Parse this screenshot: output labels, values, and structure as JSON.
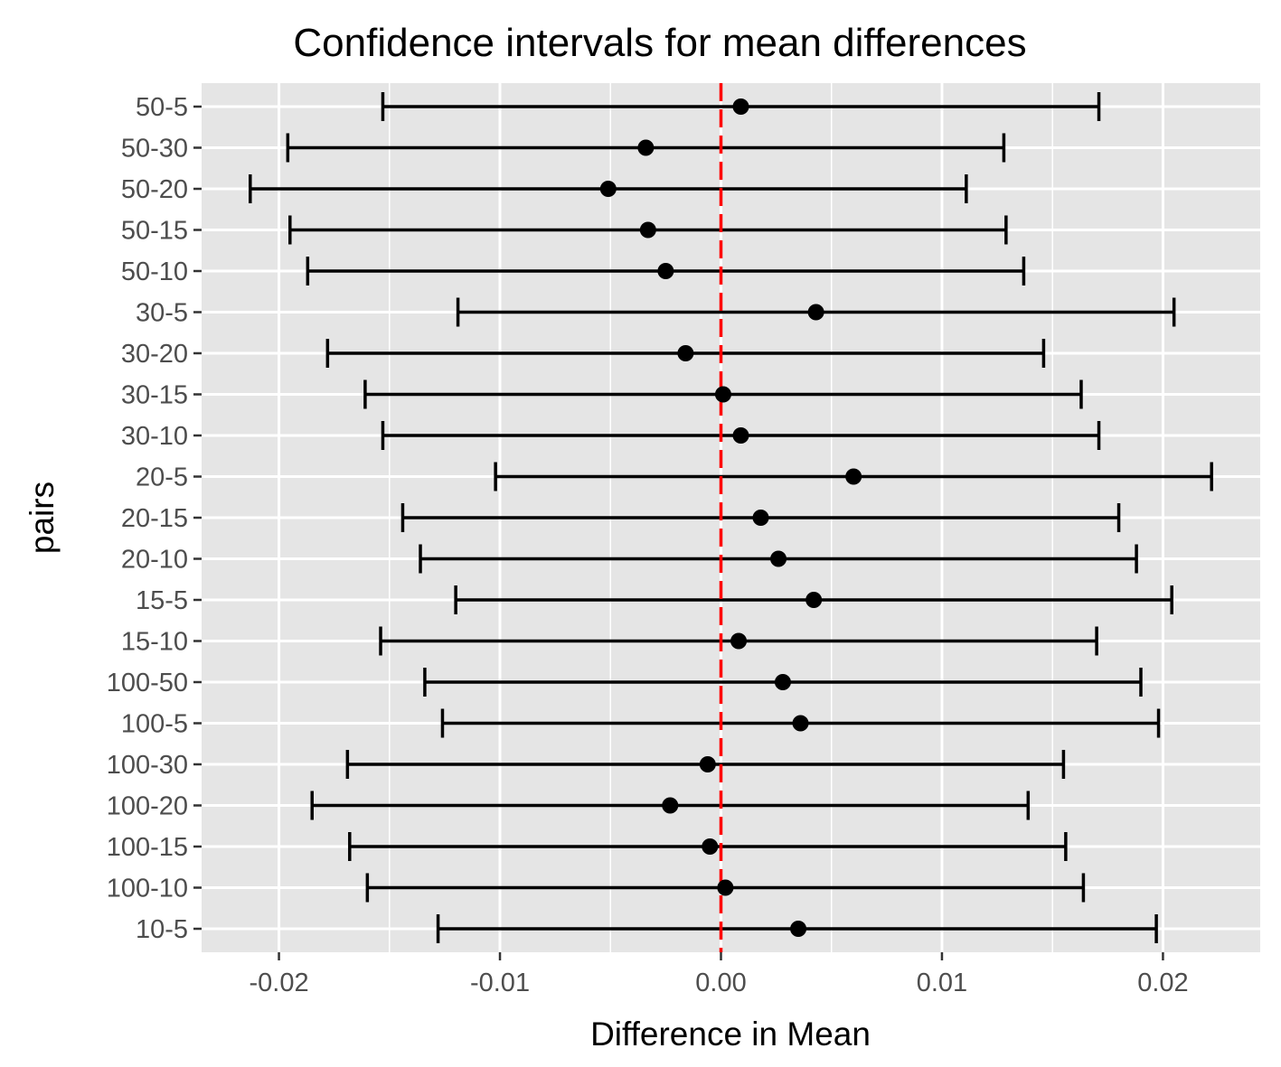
{
  "chart_data": {
    "type": "errorbar",
    "title": "Confidence intervals for mean differences",
    "xlabel": "Difference in Mean",
    "ylabel": "pairs",
    "xlim": [
      -0.0235,
      0.0244
    ],
    "x_ticks": [
      -0.02,
      -0.01,
      0.0,
      0.01,
      0.02
    ],
    "x_tick_labels": [
      "-0.02",
      "-0.01",
      "0.00",
      "0.01",
      "0.02"
    ],
    "grid": true,
    "reference_line": {
      "x": 0.0,
      "style": "dashed",
      "color": "#ff0000"
    },
    "colors": {
      "panel": "#e5e5e5",
      "grid": "#ffffff",
      "marks": "#000000"
    },
    "categories": [
      "50-5",
      "50-30",
      "50-20",
      "50-15",
      "50-10",
      "30-5",
      "30-20",
      "30-15",
      "30-10",
      "20-5",
      "20-15",
      "20-10",
      "15-5",
      "15-10",
      "100-50",
      "100-5",
      "100-30",
      "100-20",
      "100-15",
      "100-10",
      "10-5"
    ],
    "estimates": [
      0.0009,
      -0.0034,
      -0.0051,
      -0.0033,
      -0.0025,
      0.0043,
      -0.0016,
      0.0001,
      0.0009,
      0.006,
      0.0018,
      0.0026,
      0.0042,
      0.0008,
      0.0028,
      0.0036,
      -0.0006,
      -0.0023,
      -0.0005,
      0.0002,
      0.0035
    ],
    "lower": [
      -0.0153,
      -0.0196,
      -0.0213,
      -0.0195,
      -0.0187,
      -0.0119,
      -0.0178,
      -0.0161,
      -0.0153,
      -0.0102,
      -0.0144,
      -0.0136,
      -0.012,
      -0.0154,
      -0.0134,
      -0.0126,
      -0.0169,
      -0.0185,
      -0.0168,
      -0.016,
      -0.0128
    ],
    "upper": [
      0.0171,
      0.0128,
      0.0111,
      0.0129,
      0.0137,
      0.0205,
      0.0146,
      0.0163,
      0.0171,
      0.0222,
      0.018,
      0.0188,
      0.0204,
      0.017,
      0.019,
      0.0198,
      0.0155,
      0.0139,
      0.0156,
      0.0164,
      0.0197
    ]
  }
}
